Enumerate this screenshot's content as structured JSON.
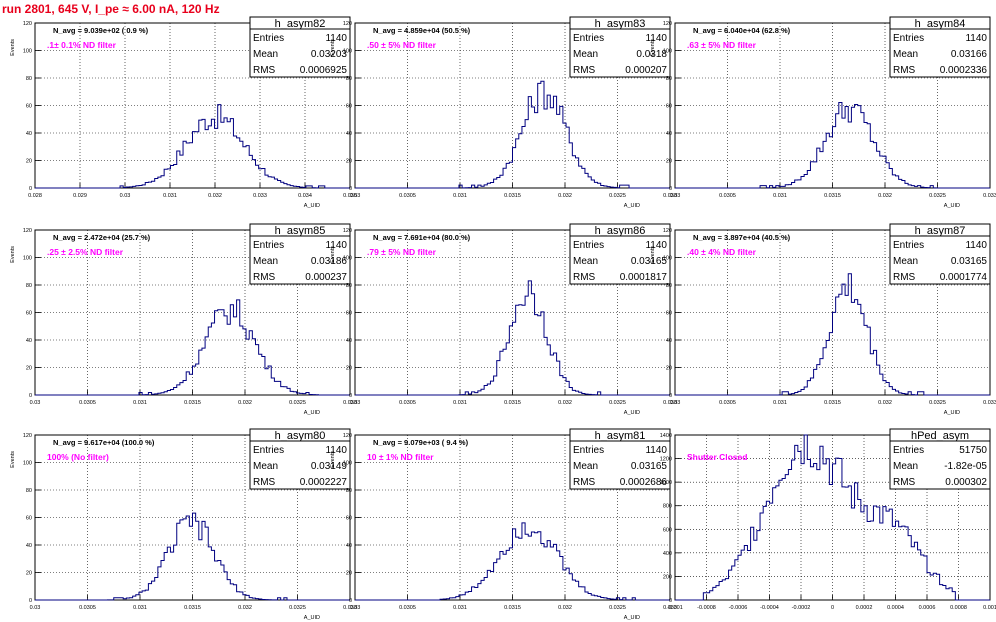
{
  "header": {
    "run_title": "run 2801,   645 V, I_pe ≈ 6.00 nA, 120 Hz"
  },
  "colors": {
    "histogram": "#000080",
    "annotation": "#ff00ff",
    "title": "#e8001c",
    "grid": "#000000"
  },
  "chart_data": [
    {
      "type": "histogram",
      "name": "h_asym82",
      "stats": [
        [
          "Entries",
          "1140"
        ],
        [
          "Mean",
          "0.03203"
        ],
        [
          "RMS",
          "0.0006925"
        ]
      ],
      "navg": "N_avg = 9.039e+02 ( 0.9 %)",
      "filter": ".1± 0.1% ND filter",
      "xlim": [
        0.028,
        0.035
      ],
      "ylim": [
        0,
        120
      ],
      "xticks": [
        "0.028",
        "0.029",
        "0.03",
        "0.031",
        "0.032",
        "0.033",
        "0.034",
        "0.035"
      ],
      "xtick_values": [
        0.028,
        0.029,
        0.03,
        0.031,
        0.032,
        0.033,
        0.034,
        0.035
      ],
      "yticks": [
        0,
        20,
        40,
        60,
        80,
        100,
        120
      ],
      "xlabel": "A_UID",
      "ylabel": "Events",
      "peak": {
        "center": 0.032,
        "height": 52,
        "width": 0.00065,
        "range": [
          0.0299,
          0.0345
        ]
      }
    },
    {
      "type": "histogram",
      "name": "h_asym83",
      "stats": [
        [
          "Entries",
          "1140"
        ],
        [
          "Mean",
          "0.0318"
        ],
        [
          "RMS",
          "0.000207"
        ]
      ],
      "navg": "N_avg = 4.859e+04 (50.5 %)",
      "filter": ".50 ± 5% ND filter",
      "xlim": [
        0.03,
        0.033
      ],
      "ylim": [
        0,
        120
      ],
      "xticks": [
        "0.03",
        "0.0305",
        "0.031",
        "0.0315",
        "0.032",
        "0.0325",
        "0.033"
      ],
      "xtick_values": [
        0.03,
        0.0305,
        0.031,
        0.0315,
        0.032,
        0.0325,
        0.033
      ],
      "yticks": [
        0,
        20,
        40,
        60,
        80,
        100,
        120
      ],
      "xlabel": "A_UID",
      "ylabel": "Events",
      "peak": {
        "center": 0.0318,
        "height": 70,
        "width": 0.00021,
        "range": [
          0.031,
          0.0326
        ]
      }
    },
    {
      "type": "histogram",
      "name": "h_asym84",
      "stats": [
        [
          "Entries",
          "1140"
        ],
        [
          "Mean",
          "0.03166"
        ],
        [
          "RMS",
          "0.0002336"
        ]
      ],
      "navg": "N_avg = 6.040e+04 (62.8 %)",
      "filter": ".63 ± 5% ND filter",
      "xlim": [
        0.03,
        0.033
      ],
      "ylim": [
        0,
        120
      ],
      "xticks": [
        "0.03",
        "0.0305",
        "0.031",
        "0.0315",
        "0.032",
        "0.0325",
        "0.033"
      ],
      "xtick_values": [
        0.03,
        0.0305,
        0.031,
        0.0315,
        0.032,
        0.0325,
        0.033
      ],
      "yticks": [
        0,
        20,
        40,
        60,
        80,
        100,
        120
      ],
      "xlabel": "A_UID",
      "ylabel": "Events",
      "peak": {
        "center": 0.03166,
        "height": 58,
        "width": 0.00023,
        "range": [
          0.0308,
          0.0325
        ]
      }
    },
    {
      "type": "histogram",
      "name": "h_asym85",
      "stats": [
        [
          "Entries",
          "1140"
        ],
        [
          "Mean",
          "0.03186"
        ],
        [
          "RMS",
          "0.000237"
        ]
      ],
      "navg": "N_avg = 2.472e+04 (25.7 %)",
      "filter": ".25 ± 2.5% ND filter",
      "xlim": [
        0.03,
        0.033
      ],
      "ylim": [
        0,
        120
      ],
      "xticks": [
        "0.03",
        "0.0305",
        "0.031",
        "0.0315",
        "0.032",
        "0.0325",
        "0.033"
      ],
      "xtick_values": [
        0.03,
        0.0305,
        0.031,
        0.0315,
        0.032,
        0.0325,
        0.033
      ],
      "yticks": [
        0,
        20,
        40,
        60,
        80,
        100,
        120
      ],
      "xlabel": "A_UID",
      "ylabel": "Events",
      "peak": {
        "center": 0.03186,
        "height": 62,
        "width": 0.00024,
        "range": [
          0.031,
          0.0327
        ]
      }
    },
    {
      "type": "histogram",
      "name": "h_asym86",
      "stats": [
        [
          "Entries",
          "1140"
        ],
        [
          "Mean",
          "0.03165"
        ],
        [
          "RMS",
          "0.0001817"
        ]
      ],
      "navg": "N_avg = 7.691e+04 (80.0 %)",
      "filter": ".79 ± 5% ND filter",
      "xlim": [
        0.03,
        0.033
      ],
      "ylim": [
        0,
        120
      ],
      "xticks": [
        "0.03",
        "0.0305",
        "0.031",
        "0.0315",
        "0.032",
        "0.0325",
        "0.033"
      ],
      "xtick_values": [
        0.03,
        0.0305,
        0.031,
        0.0315,
        0.032,
        0.0325,
        0.033
      ],
      "yticks": [
        0,
        20,
        40,
        60,
        80,
        100,
        120
      ],
      "xlabel": "A_UID",
      "ylabel": "Events",
      "peak": {
        "center": 0.03165,
        "height": 76,
        "width": 0.00018,
        "range": [
          0.031,
          0.0324
        ]
      }
    },
    {
      "type": "histogram",
      "name": "h_asym87",
      "stats": [
        [
          "Entries",
          "1140"
        ],
        [
          "Mean",
          "0.03165"
        ],
        [
          "RMS",
          "0.0001774"
        ]
      ],
      "navg": "N_avg = 3.897e+04 (40.5 %)",
      "filter": ".40 ± 4% ND filter",
      "xlim": [
        0.03,
        0.033
      ],
      "ylim": [
        0,
        120
      ],
      "xticks": [
        "0.03",
        "0.0305",
        "0.031",
        "0.0315",
        "0.032",
        "0.0325",
        "0.033"
      ],
      "xtick_values": [
        0.03,
        0.0305,
        0.031,
        0.0315,
        0.032,
        0.0325,
        0.033
      ],
      "yticks": [
        0,
        20,
        40,
        60,
        80,
        100,
        120
      ],
      "xlabel": "A_UID",
      "ylabel": "Events",
      "peak": {
        "center": 0.03165,
        "height": 78,
        "width": 0.00018,
        "range": [
          0.031,
          0.0324
        ]
      }
    },
    {
      "type": "histogram",
      "name": "h_asym80",
      "stats": [
        [
          "Entries",
          "1140"
        ],
        [
          "Mean",
          "0.03149"
        ],
        [
          "RMS",
          "0.0002227"
        ]
      ],
      "navg": "N_avg = 9.617e+04 (100.0 %)",
      "filter": "100% (No filter)",
      "xlim": [
        0.03,
        0.033
      ],
      "ylim": [
        0,
        120
      ],
      "xticks": [
        "0.03",
        "0.0305",
        "0.031",
        "0.0315",
        "0.032",
        "0.0325",
        "0.033"
      ],
      "xtick_values": [
        0.03,
        0.0305,
        0.031,
        0.0315,
        0.032,
        0.0325,
        0.033
      ],
      "yticks": [
        0,
        20,
        40,
        60,
        80,
        100,
        120
      ],
      "xlabel": "A_UID",
      "ylabel": "Events",
      "peak": {
        "center": 0.03149,
        "height": 56,
        "width": 0.00022,
        "range": [
          0.0307,
          0.0324
        ]
      }
    },
    {
      "type": "histogram",
      "name": "h_asym81",
      "stats": [
        [
          "Entries",
          "1140"
        ],
        [
          "Mean",
          "0.03165"
        ],
        [
          "RMS",
          "0.0002686"
        ]
      ],
      "navg": "N_avg = 9.079e+03 ( 9.4 %)",
      "filter": "10 ± 1% ND filter",
      "xlim": [
        0.03,
        0.033
      ],
      "ylim": [
        0,
        120
      ],
      "xticks": [
        "0.03",
        "0.0305",
        "0.031",
        "0.0315",
        "0.032",
        "0.0325",
        "0.033"
      ],
      "xtick_values": [
        0.03,
        0.0305,
        0.031,
        0.0315,
        0.032,
        0.0325,
        0.033
      ],
      "yticks": [
        0,
        20,
        40,
        60,
        80,
        100,
        120
      ],
      "xlabel": "A_UID",
      "ylabel": "Events",
      "peak": {
        "center": 0.03165,
        "height": 55,
        "width": 0.00027,
        "range": [
          0.0308,
          0.0327
        ]
      }
    },
    {
      "type": "histogram",
      "name": "hPed_asym",
      "stats": [
        [
          "Entries",
          "51750"
        ],
        [
          "Mean",
          "-1.82e-05"
        ],
        [
          "RMS",
          "0.000302"
        ]
      ],
      "navg": "",
      "filter": "Shutter Closed",
      "xlim": [
        -0.001,
        0.001
      ],
      "ylim": [
        0,
        1400
      ],
      "xticks": [
        "-0.001",
        "-0.0008",
        "-0.0006",
        "-0.0004",
        "-0.0002",
        "0",
        "0.0002",
        "0.0004",
        "0.0006",
        "0.0008",
        "0.001"
      ],
      "xtick_values": [
        -0.001,
        -0.0008,
        -0.0006,
        -0.0004,
        -0.0002,
        0,
        0.0002,
        0.0004,
        0.0006,
        0.0008,
        0.001
      ],
      "yticks": [
        0,
        200,
        400,
        600,
        800,
        1000,
        1200,
        1400
      ],
      "xlabel": "",
      "ylabel": "",
      "peak": {
        "center": -0.00018,
        "height": 1330,
        "width": 0.00025,
        "range": [
          -0.00082,
          0.00078
        ],
        "shoulder": true
      }
    }
  ]
}
